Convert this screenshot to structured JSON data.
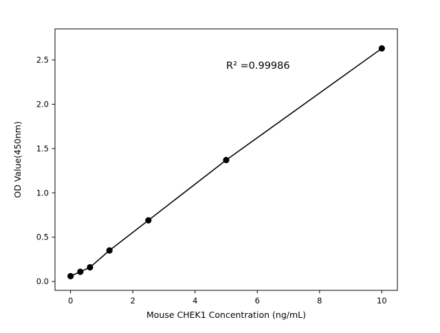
{
  "figure": {
    "background": "#ffffff"
  },
  "chart_data": {
    "type": "scatter",
    "title": "",
    "xlabel": "Mouse CHEK1 Concentration (ng/mL)",
    "ylabel": "OD Value(450nm)",
    "annotation": {
      "text": "R² =0.99986",
      "x": 5.0,
      "y": 2.4
    },
    "x": [
      0,
      0.313,
      0.625,
      1.25,
      2.5,
      5,
      10
    ],
    "y": [
      0.06,
      0.11,
      0.16,
      0.35,
      0.69,
      1.37,
      2.63
    ],
    "xlim": [
      -0.5,
      10.5
    ],
    "ylim": [
      -0.1,
      2.85
    ],
    "xticks": [
      0,
      2,
      4,
      6,
      8,
      10
    ],
    "xtick_labels": [
      "0",
      "2",
      "4",
      "6",
      "8",
      "10"
    ],
    "yticks": [
      0.0,
      0.5,
      1.0,
      1.5,
      2.0,
      2.5
    ],
    "ytick_labels": [
      "0.0",
      "0.5",
      "1.0",
      "1.5",
      "2.0",
      "2.5"
    ],
    "line_color": "#000000",
    "marker_color": "#000000",
    "grid": false,
    "legend_position": "none"
  }
}
